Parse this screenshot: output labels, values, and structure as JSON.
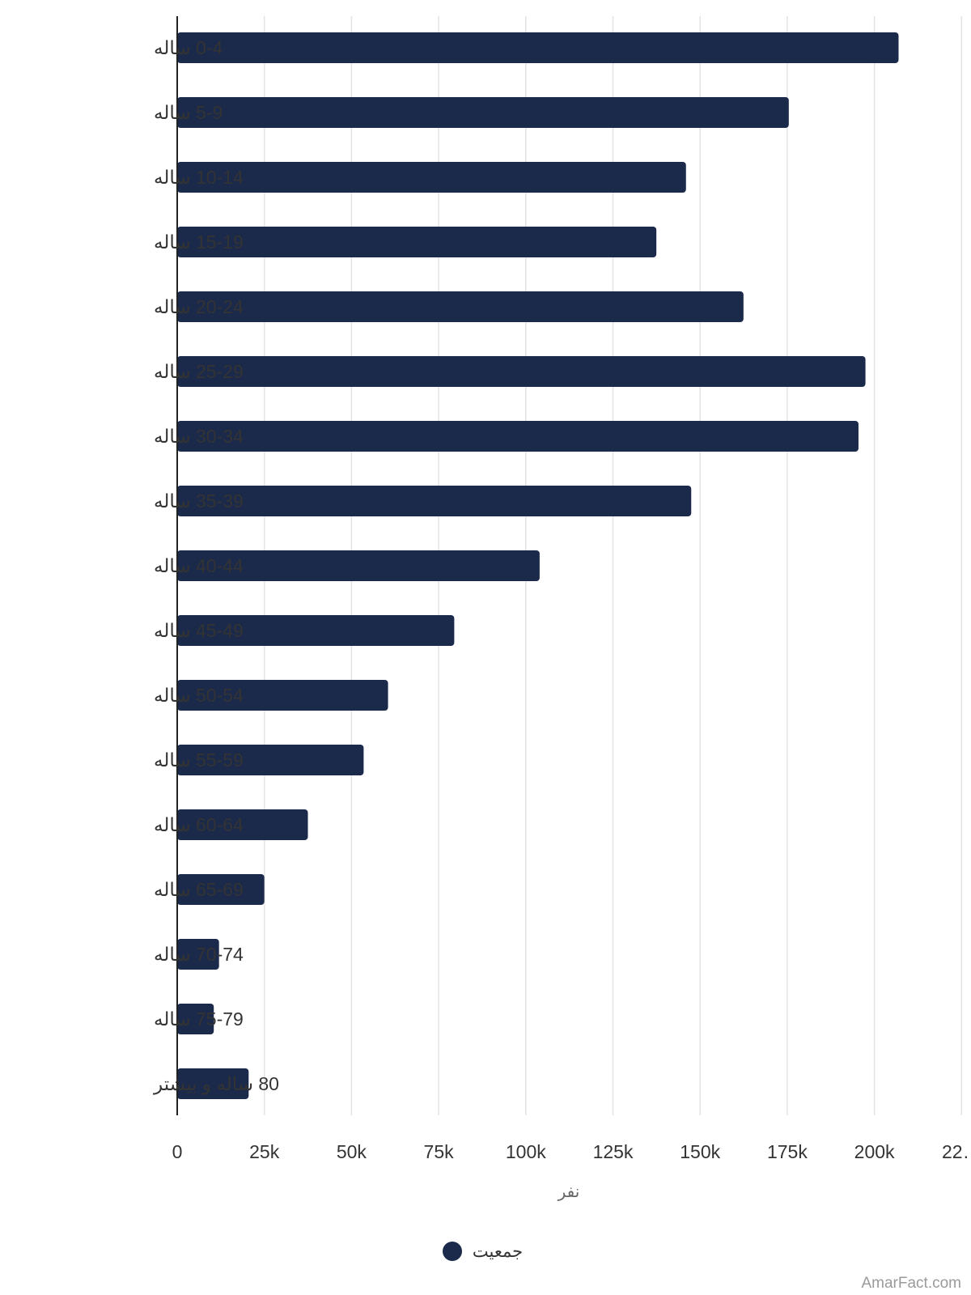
{
  "chart_data": {
    "type": "bar",
    "orientation": "horizontal",
    "categories": [
      "0-4 ساله",
      "5-9 ساله",
      "10-14 ساله",
      "15-19 ساله",
      "20-24 ساله",
      "25-29 ساله",
      "30-34 ساله",
      "35-39 ساله",
      "40-44 ساله",
      "45-49 ساله",
      "50-54 ساله",
      "55-59 ساله",
      "60-64 ساله",
      "65-69 ساله",
      "70-74 ساله",
      "75-79 ساله",
      "80 ساله و بیشتر"
    ],
    "series": [
      {
        "name": "جمعیت",
        "values": [
          207000,
          175500,
          146000,
          137500,
          162500,
          197500,
          195500,
          147500,
          104000,
          79500,
          60500,
          53500,
          37500,
          25000,
          12000,
          10500,
          20500
        ]
      }
    ],
    "xlabel": "نفر",
    "ylabel": "",
    "xlim": [
      0,
      225000
    ],
    "x_ticks": [
      "0",
      "25k",
      "50k",
      "75k",
      "100k",
      "125k",
      "150k",
      "175k",
      "200k",
      "22…"
    ],
    "grid": "vertical",
    "legend": "bottom",
    "colors": {
      "bar": "#1b2a4b",
      "grid": "#e3e3e3",
      "axis": "#222222"
    }
  },
  "watermark": "AmarFact.com"
}
